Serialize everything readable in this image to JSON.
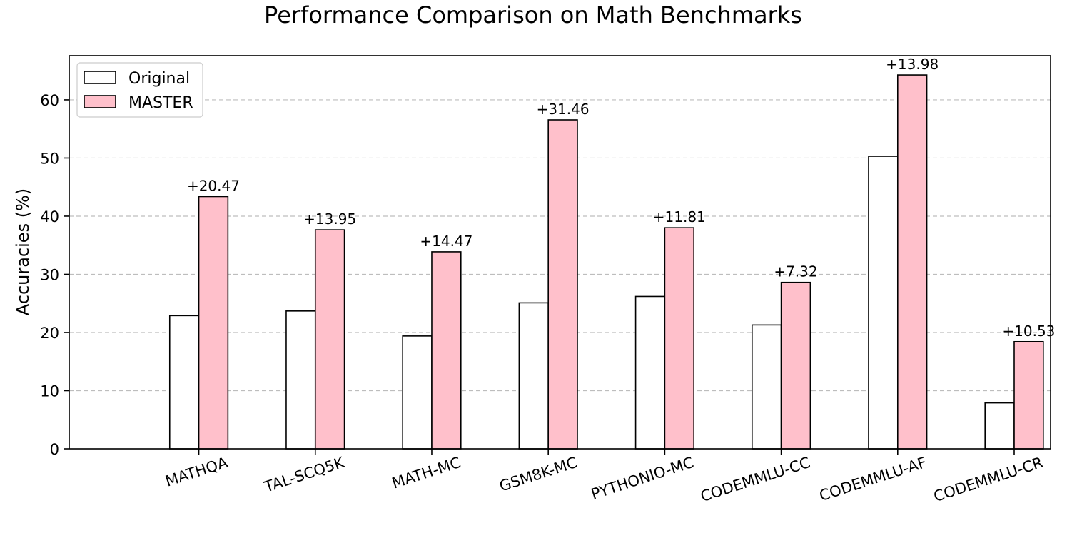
{
  "chart_data": {
    "type": "bar",
    "title": "Performance Comparison on Math Benchmarks",
    "xlabel": "",
    "ylabel": "Accuracies (%)",
    "ylim": [
      0,
      67.6
    ],
    "yticks": [
      0,
      10,
      20,
      30,
      40,
      50,
      60
    ],
    "grid": "y-dashed",
    "legend_position": "top-left",
    "categories": [
      "MATHQA",
      "TAL-SCQ5K",
      "MATH-MC",
      "GSM8K-MC",
      "PYTHONIO-MC",
      "CODEMMLU-CC",
      "CODEMMLU-AF",
      "CODEMMLU-CR"
    ],
    "series": [
      {
        "name": "Original",
        "values": [
          22.9,
          23.7,
          19.4,
          25.1,
          26.2,
          21.3,
          50.3,
          7.9
        ],
        "color": "#ffffff"
      },
      {
        "name": "MASTER",
        "values": [
          43.37,
          37.65,
          33.87,
          56.56,
          38.01,
          28.62,
          64.28,
          18.43
        ],
        "color": "#ffc0cb"
      }
    ],
    "annotations": [
      "+20.47",
      "+13.95",
      "+14.47",
      "+31.46",
      "+11.81",
      "+7.32",
      "+13.98",
      "+10.53"
    ]
  }
}
